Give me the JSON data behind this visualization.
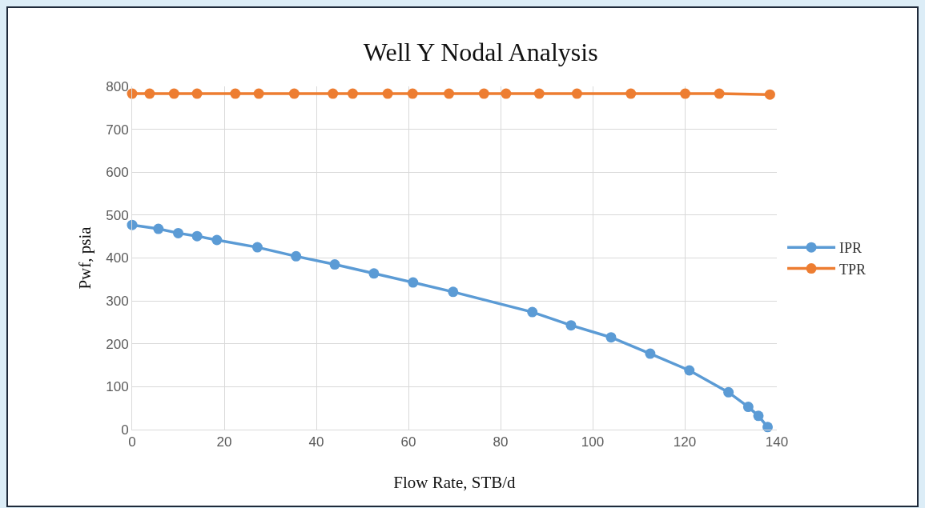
{
  "chart_data": {
    "type": "line",
    "title": "Well Y Nodal Analysis",
    "xlabel": "Flow Rate, STB/d",
    "ylabel": "Pwf, psia",
    "xlim": [
      0,
      140
    ],
    "xticks": [
      0,
      20,
      40,
      60,
      80,
      100,
      120,
      140
    ],
    "ylim": [
      0,
      800
    ],
    "yticks": [
      0,
      100,
      200,
      300,
      400,
      500,
      600,
      700,
      800
    ],
    "grid": true,
    "legend": "right",
    "marker": "circle",
    "line_style": "solid",
    "series": [
      {
        "name": "IPR",
        "color": "#5b9bd5",
        "x": [
          0,
          5.7,
          10,
          14.1,
          18.4,
          27.2,
          35.6,
          44,
          52.5,
          61,
          69.7,
          86.9,
          95.3,
          104,
          112.5,
          121,
          129.5,
          133.8,
          136,
          138
        ],
        "values": [
          477,
          468,
          458,
          451,
          442,
          425,
          404,
          385,
          364,
          343,
          321,
          274,
          243,
          215,
          177,
          138,
          87,
          53,
          32,
          6
        ]
      },
      {
        "name": "TPR",
        "color": "#ed7d31",
        "x": [
          0,
          3.8,
          9.1,
          14.1,
          22.4,
          27.5,
          35.2,
          43.6,
          47.9,
          55.5,
          60.9,
          68.8,
          76.4,
          81.2,
          88.4,
          96.6,
          108.3,
          120.1,
          127.5,
          138.5
        ],
        "values": [
          783,
          783,
          783,
          783,
          783,
          783,
          783,
          783,
          783,
          783,
          783,
          783,
          783,
          783,
          783,
          783,
          783,
          783,
          783,
          781
        ]
      }
    ]
  }
}
